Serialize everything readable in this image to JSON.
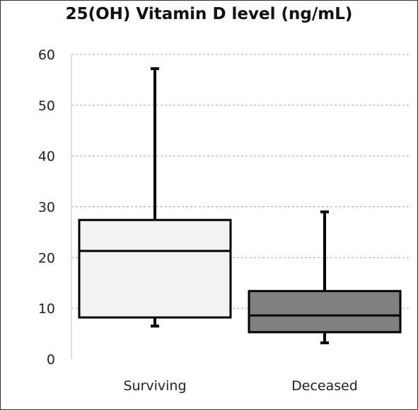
{
  "chart_data": {
    "type": "boxplot",
    "title": "25(OH) Vitamin D level (ng/mL)",
    "xlabel": "",
    "ylabel": "",
    "ylim": [
      0,
      60
    ],
    "yticks": [
      0,
      10,
      20,
      30,
      40,
      50,
      60
    ],
    "grid": true,
    "categories": [
      "Surviving",
      "Deceased"
    ],
    "boxes": [
      {
        "category": "Surviving",
        "min": 6.5,
        "q1": 8.2,
        "median": 21.3,
        "q3": 27.4,
        "max": 57.2,
        "color": "#f2f2f2"
      },
      {
        "category": "Deceased",
        "min": 3.2,
        "q1": 5.3,
        "median": 8.6,
        "q3": 13.4,
        "max": 29.0,
        "color": "#808080"
      }
    ]
  }
}
